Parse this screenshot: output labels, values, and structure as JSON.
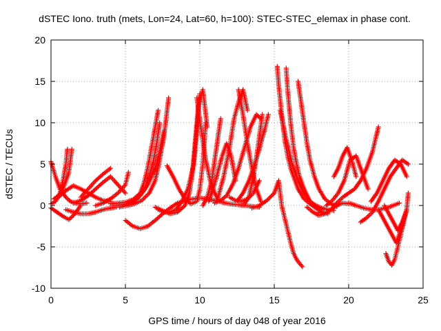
{
  "chart_data": {
    "type": "scatter",
    "title": "dSTEC Iono. truth (mets, Lon=24, Lat=60, h=100): STEC-STEC_elemax in phase cont.",
    "xlabel": "GPS time / hours of day 048 of year 2016",
    "ylabel": "dSTEC  / TECUs",
    "xlim": [
      0,
      25
    ],
    "ylim": [
      -10,
      20
    ],
    "xticks": [
      0,
      5,
      10,
      15,
      20,
      25
    ],
    "yticks": [
      -10,
      -5,
      0,
      5,
      10,
      15,
      20
    ],
    "xtick_labels": [
      "0",
      "5",
      "10",
      "15",
      "20",
      "25"
    ],
    "ytick_labels": [
      "-10",
      "-5",
      "0",
      "5",
      "10",
      "15",
      "20"
    ],
    "grid": true,
    "marker": "+",
    "marker_color": "#ff0000",
    "series": [
      {
        "x": [
          0.0,
          0.3,
          0.6,
          1.0,
          1.3,
          1.6,
          2.0,
          2.4
        ],
        "y": [
          5.3,
          3.5,
          2.0,
          1.0,
          0.5,
          0.3,
          0.2,
          0.3
        ]
      },
      {
        "x": [
          0.0,
          0.3,
          0.6,
          0.8,
          1.0,
          1.1
        ],
        "y": [
          0.2,
          0.5,
          1.5,
          3.0,
          5.0,
          6.8
        ]
      },
      {
        "x": [
          0.0,
          0.4,
          0.8,
          1.2,
          1.5,
          1.8,
          2.0
        ],
        "y": [
          -0.3,
          -0.8,
          -1.3,
          -1.7,
          -1.2,
          -0.5,
          0.0
        ]
      },
      {
        "x": [
          0.2,
          0.5,
          0.8,
          1.0,
          1.2,
          1.4
        ],
        "y": [
          0.8,
          1.2,
          2.0,
          3.0,
          4.0,
          6.8
        ]
      },
      {
        "x": [
          0.5,
          1.0,
          1.5,
          2.0,
          2.5,
          3.0,
          3.5,
          4.0
        ],
        "y": [
          1.0,
          1.8,
          2.4,
          2.0,
          1.5,
          1.0,
          0.6,
          0.5
        ]
      },
      {
        "x": [
          1.0,
          1.5,
          2.0,
          2.5,
          3.0,
          3.5,
          4.0,
          4.4
        ],
        "y": [
          -0.5,
          -0.8,
          -1.0,
          -1.0,
          -0.8,
          -0.5,
          -0.3,
          -0.2
        ]
      },
      {
        "x": [
          1.5,
          2.0,
          2.5,
          3.0,
          3.5,
          4.0,
          4.5,
          5.0
        ],
        "y": [
          0.3,
          0.6,
          1.2,
          2.0,
          2.8,
          3.5,
          2.5,
          1.5
        ]
      },
      {
        "x": [
          2.0,
          2.5,
          3.0,
          3.5,
          4.0
        ],
        "y": [
          1.0,
          2.0,
          3.0,
          3.8,
          4.5
        ]
      },
      {
        "x": [
          3.0,
          3.5,
          4.0,
          4.5,
          5.0,
          5.2
        ],
        "y": [
          0.0,
          0.3,
          0.8,
          1.5,
          2.5,
          4.0
        ]
      },
      {
        "x": [
          4.0,
          4.5,
          5.0,
          5.5,
          6.0,
          6.2,
          6.4,
          6.6,
          6.8,
          7.0,
          7.2
        ],
        "y": [
          0.2,
          0.3,
          0.4,
          0.7,
          1.5,
          2.5,
          3.8,
          5.5,
          7.5,
          9.5,
          11.5
        ]
      },
      {
        "x": [
          4.3,
          4.8,
          5.3,
          5.8,
          6.3,
          6.6,
          6.9,
          7.1,
          7.3
        ],
        "y": [
          0.0,
          0.1,
          0.3,
          0.8,
          2.0,
          3.5,
          5.5,
          7.5,
          10.0
        ]
      },
      {
        "x": [
          4.6,
          5.1,
          5.6,
          6.1,
          6.6,
          7.0,
          7.3,
          7.6,
          7.9
        ],
        "y": [
          -0.2,
          0.0,
          0.2,
          0.6,
          1.5,
          3.0,
          5.5,
          8.5,
          13.0
        ]
      },
      {
        "x": [
          5.0,
          5.5,
          6.0,
          6.5,
          7.0,
          7.3,
          7.6
        ],
        "y": [
          0.1,
          0.5,
          1.2,
          2.5,
          4.5,
          6.5,
          9.0
        ]
      },
      {
        "x": [
          5.0,
          5.5,
          6.0,
          6.5,
          7.0,
          7.5,
          8.0,
          8.5,
          9.0,
          9.5,
          10.0,
          10.5,
          11.0,
          11.5,
          12.0,
          12.5,
          13.0,
          13.5,
          14.0
        ],
        "y": [
          -1.8,
          -2.5,
          -2.8,
          -2.5,
          -1.8,
          -1.0,
          -0.3,
          0.3,
          0.6,
          0.8,
          0.9,
          0.8,
          0.6,
          0.4,
          0.2,
          0.1,
          0.0,
          -0.1,
          -0.2
        ]
      },
      {
        "x": [
          7.0,
          7.5,
          8.0,
          8.5,
          9.0,
          9.3,
          9.5,
          9.7,
          9.9,
          10.2,
          10.5
        ],
        "y": [
          -0.2,
          -0.6,
          -1.0,
          -0.8,
          0.0,
          1.5,
          4.0,
          8.0,
          12.0,
          14.0,
          9.5
        ]
      },
      {
        "x": [
          7.8,
          8.2,
          8.6,
          9.0,
          9.4,
          9.8,
          10.0,
          10.2,
          10.4
        ],
        "y": [
          4.8,
          3.5,
          2.0,
          0.8,
          0.2,
          0.5,
          2.0,
          5.0,
          10.0
        ]
      },
      {
        "x": [
          7.2,
          7.6,
          8.0,
          8.4,
          8.8,
          9.2,
          9.6,
          9.8,
          10.0
        ],
        "y": [
          -0.5,
          -0.8,
          -0.8,
          -0.5,
          0.5,
          2.0,
          5.0,
          9.0,
          13.5
        ]
      },
      {
        "x": [
          9.8,
          10.1,
          10.4,
          10.7,
          11.0,
          11.3
        ],
        "y": [
          13.0,
          9.0,
          5.5,
          3.0,
          1.5,
          0.5
        ]
      },
      {
        "x": [
          10.2,
          10.5,
          10.8,
          11.0,
          11.2,
          11.4
        ],
        "y": [
          0.0,
          1.0,
          3.0,
          5.5,
          8.0,
          10.5
        ]
      },
      {
        "x": [
          10.6,
          10.9,
          11.2,
          11.5,
          11.8,
          12.1,
          12.4
        ],
        "y": [
          0.5,
          2.0,
          4.0,
          6.0,
          7.5,
          6.0,
          3.0
        ]
      },
      {
        "x": [
          11.0,
          11.4,
          11.8,
          12.2,
          12.6,
          13.0,
          13.4,
          13.8,
          14.1
        ],
        "y": [
          0.3,
          0.6,
          1.2,
          2.5,
          4.5,
          7.0,
          9.5,
          11.0,
          10.5
        ]
      },
      {
        "x": [
          11.2,
          11.6,
          12.0,
          12.3,
          12.6,
          12.9,
          13.2
        ],
        "y": [
          0.8,
          3.5,
          7.0,
          10.5,
          12.5,
          14.0,
          11.5
        ]
      },
      {
        "x": [
          12.6,
          12.9,
          13.2,
          13.5,
          13.8,
          14.1
        ],
        "y": [
          14.0,
          11.0,
          7.5,
          4.5,
          2.0,
          0.5
        ]
      },
      {
        "x": [
          12.0,
          12.4,
          12.8,
          13.2,
          13.6,
          14.0
        ],
        "y": [
          1.0,
          0.6,
          0.5,
          0.8,
          1.5,
          3.0
        ]
      },
      {
        "x": [
          12.5,
          12.9,
          13.3,
          13.7,
          14.1,
          14.4,
          14.6
        ],
        "y": [
          0.5,
          1.5,
          3.0,
          5.0,
          7.5,
          9.5,
          11.0
        ]
      },
      {
        "x": [
          13.0,
          13.3,
          13.6,
          13.9,
          14.2
        ],
        "y": [
          0.2,
          1.0,
          3.5,
          7.0,
          11.0
        ]
      },
      {
        "x": [
          13.5,
          14.0,
          14.5,
          15.0,
          15.3,
          15.5,
          15.7,
          15.9,
          16.1,
          16.3,
          16.5,
          16.7,
          16.9
        ],
        "y": [
          -0.3,
          0.0,
          0.6,
          1.5,
          3.0,
          0.0,
          -1.5,
          -3.0,
          -4.5,
          -5.8,
          -6.5,
          -7.0,
          -7.4
        ]
      },
      {
        "x": [
          15.2,
          15.3,
          15.5,
          15.7,
          15.9,
          16.1,
          16.3,
          16.6,
          17.0,
          17.4,
          17.8,
          18.2
        ],
        "y": [
          16.8,
          14.5,
          11.0,
          8.0,
          6.0,
          4.5,
          3.5,
          2.0,
          0.8,
          0.2,
          -0.3,
          -0.5
        ]
      },
      {
        "x": [
          15.8,
          15.9,
          16.1,
          16.3,
          16.5,
          16.7,
          17.0,
          17.4,
          17.8,
          18.2,
          18.6
        ],
        "y": [
          16.6,
          14.0,
          10.0,
          7.0,
          5.0,
          3.5,
          2.0,
          0.5,
          -0.3,
          -0.8,
          -1.0
        ]
      },
      {
        "x": [
          16.6,
          16.8,
          17.0,
          17.2,
          17.4,
          17.7,
          18.0,
          18.4,
          18.8,
          19.2
        ],
        "y": [
          15.0,
          12.5,
          10.0,
          7.5,
          5.5,
          3.5,
          2.0,
          0.8,
          0.2,
          -0.1
        ]
      },
      {
        "x": [
          15.4,
          15.8,
          16.2,
          16.6,
          17.0,
          17.4,
          17.8,
          18.2,
          18.6,
          19.0
        ],
        "y": [
          11.5,
          8.0,
          5.0,
          3.0,
          1.5,
          0.5,
          0.0,
          -0.3,
          -0.5,
          -0.6
        ]
      },
      {
        "x": [
          17.2,
          17.6,
          18.0,
          18.4,
          18.8,
          19.2,
          19.6,
          20.0
        ],
        "y": [
          -0.2,
          -0.8,
          -1.2,
          -1.0,
          -0.5,
          0.0,
          0.3,
          0.2
        ]
      },
      {
        "x": [
          18.0,
          18.4,
          18.8,
          19.2,
          19.6,
          20.0,
          20.4,
          20.8,
          21.2,
          21.6,
          22.0
        ],
        "y": [
          -0.8,
          -1.0,
          -0.5,
          0.3,
          1.0,
          1.5,
          2.0,
          3.0,
          4.5,
          6.5,
          9.5
        ]
      },
      {
        "x": [
          18.5,
          18.9,
          19.3,
          19.7,
          20.1,
          20.5,
          20.9,
          21.3
        ],
        "y": [
          0.0,
          0.6,
          1.5,
          3.0,
          5.5,
          6.0,
          4.0,
          2.0
        ]
      },
      {
        "x": [
          19.0,
          19.3,
          19.6,
          19.9,
          20.2,
          20.5
        ],
        "y": [
          3.5,
          4.5,
          6.0,
          7.0,
          5.5,
          3.5
        ]
      },
      {
        "x": [
          20.0,
          20.5,
          21.0,
          21.5,
          22.0,
          22.5,
          23.0,
          23.4
        ],
        "y": [
          0.3,
          0.0,
          -0.3,
          -0.5,
          -0.5,
          -0.3,
          0.0,
          0.3
        ]
      },
      {
        "x": [
          20.8,
          21.2,
          21.6,
          22.0,
          22.4,
          22.8,
          23.2,
          23.6,
          24.0
        ],
        "y": [
          -2.0,
          -1.5,
          -0.8,
          0.5,
          2.0,
          3.5,
          4.5,
          5.5,
          5.0
        ]
      },
      {
        "x": [
          21.5,
          21.9,
          22.3,
          22.7,
          23.1,
          23.5,
          23.9
        ],
        "y": [
          0.5,
          1.5,
          3.0,
          4.5,
          5.5,
          5.0,
          3.5
        ]
      },
      {
        "x": [
          22.5,
          22.7,
          22.9,
          23.1,
          23.3,
          23.5,
          23.7,
          23.9,
          24.0
        ],
        "y": [
          -5.8,
          -6.8,
          -7.2,
          -6.5,
          -5.0,
          -3.5,
          -2.0,
          -0.5,
          1.5
        ]
      },
      {
        "x": [
          22.0,
          22.3,
          22.6,
          22.9,
          23.2,
          23.5,
          23.8
        ],
        "y": [
          -0.5,
          -1.5,
          -2.5,
          -3.5,
          -4.5,
          -3.0,
          -1.0
        ]
      },
      {
        "x": [
          22.4,
          22.7,
          23.0,
          23.3,
          23.6,
          23.9
        ],
        "y": [
          0.0,
          -1.0,
          -2.0,
          -3.0,
          -2.0,
          -0.5
        ]
      }
    ]
  }
}
